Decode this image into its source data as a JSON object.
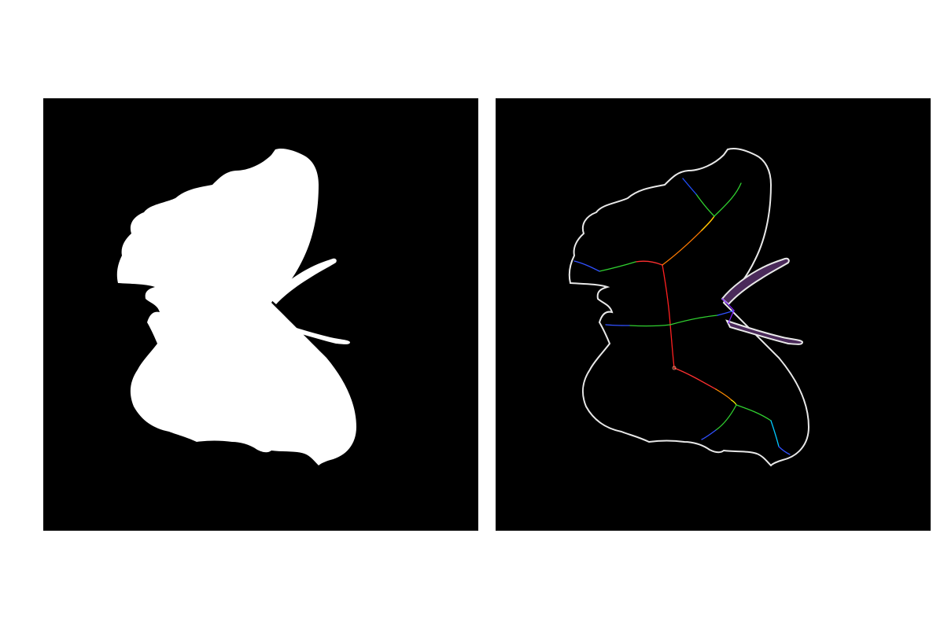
{
  "figure": {
    "panels": [
      {
        "id": "binary-mask",
        "background": "#000000",
        "foreground": "#ffffff"
      },
      {
        "id": "contour-skeleton",
        "background": "#000000",
        "contour_color": "#ffffff",
        "antenna_fill": "#7a4a9a"
      }
    ],
    "page_background": "#ffffff",
    "skeleton_colors": {
      "red": "#ff0000",
      "orange": "#ff8c00",
      "yellow": "#ffff00",
      "green": "#00d000",
      "cyan": "#00c8ff",
      "blue": "#2040ff",
      "purple": "#8000ff"
    }
  }
}
